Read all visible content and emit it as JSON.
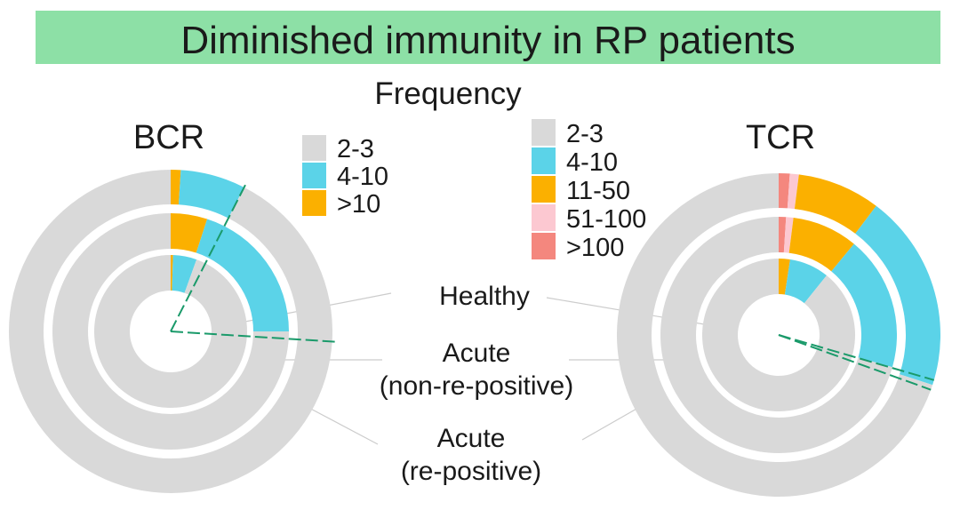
{
  "title": "Diminished immunity in RP patients",
  "colors": {
    "title_bg": "#8de0a6",
    "2-3": "#d9d9d9",
    "4-10": "#5bd3e8",
    ">10": "#fbb000",
    "11-50": "#fbb000",
    "51-100": "#fcc8d1",
    ">100": "#f4877e",
    "dashed_line": "#1a9a6a",
    "leader_line": "#cccccc"
  },
  "legend_title": "Frequency",
  "ring_labels": [
    "Healthy",
    "Acute",
    "(non-re-positive)",
    "Acute",
    "(re-positive)"
  ],
  "chart_data": [
    {
      "type": "pie",
      "subtype": "nested donut",
      "title": "BCR",
      "legend": [
        "2-3",
        "4-10",
        ">10"
      ],
      "unit": "percent of clones",
      "rings": [
        {
          "name": "Healthy",
          "segments": [
            {
              "category": ">10",
              "value": 0.5
            },
            {
              "category": "4-10",
              "value": 5.0
            },
            {
              "category": "2-3",
              "value": 94.5
            }
          ]
        },
        {
          "name": "Acute (non-re-positive)",
          "segments": [
            {
              "category": ">10",
              "value": 5.0
            },
            {
              "category": "4-10",
              "value": 20.0
            },
            {
              "category": "2-3",
              "value": 75.0
            }
          ]
        },
        {
          "name": "Acute (re-positive)",
          "segments": [
            {
              "category": ">10",
              "value": 1.0
            },
            {
              "category": "4-10",
              "value": 6.5
            },
            {
              "category": "2-3",
              "value": 92.5
            }
          ]
        }
      ],
      "dashed_markers_percent": [
        7.5,
        26.0
      ]
    },
    {
      "type": "pie",
      "subtype": "nested donut",
      "title": "TCR",
      "legend": [
        "2-3",
        "4-10",
        "11-50",
        "51-100",
        ">100"
      ],
      "unit": "percent of clones",
      "rings": [
        {
          "name": "Healthy",
          "segments": [
            {
              "category": "11-50",
              "value": 2.4
            },
            {
              "category": "4-10",
              "value": 8.4
            },
            {
              "category": "2-3",
              "value": 89.2
            }
          ]
        },
        {
          "name": "Acute (non-re-positive)",
          "segments": [
            {
              "category": ">100",
              "value": 1.0
            },
            {
              "category": "51-100",
              "value": 1.0
            },
            {
              "category": "11-50",
              "value": 9.0
            },
            {
              "category": "4-10",
              "value": 18.4
            },
            {
              "category": "2-3",
              "value": 70.6
            }
          ]
        },
        {
          "name": "Acute (re-positive)",
          "segments": [
            {
              "category": ">100",
              "value": 1.1
            },
            {
              "category": "51-100",
              "value": 0.9
            },
            {
              "category": "11-50",
              "value": 8.3
            },
            {
              "category": "4-10",
              "value": 19.7
            },
            {
              "category": "2-3",
              "value": 70.0
            }
          ]
        }
      ],
      "dashed_markers_percent": [
        29.5,
        30.5
      ]
    }
  ]
}
